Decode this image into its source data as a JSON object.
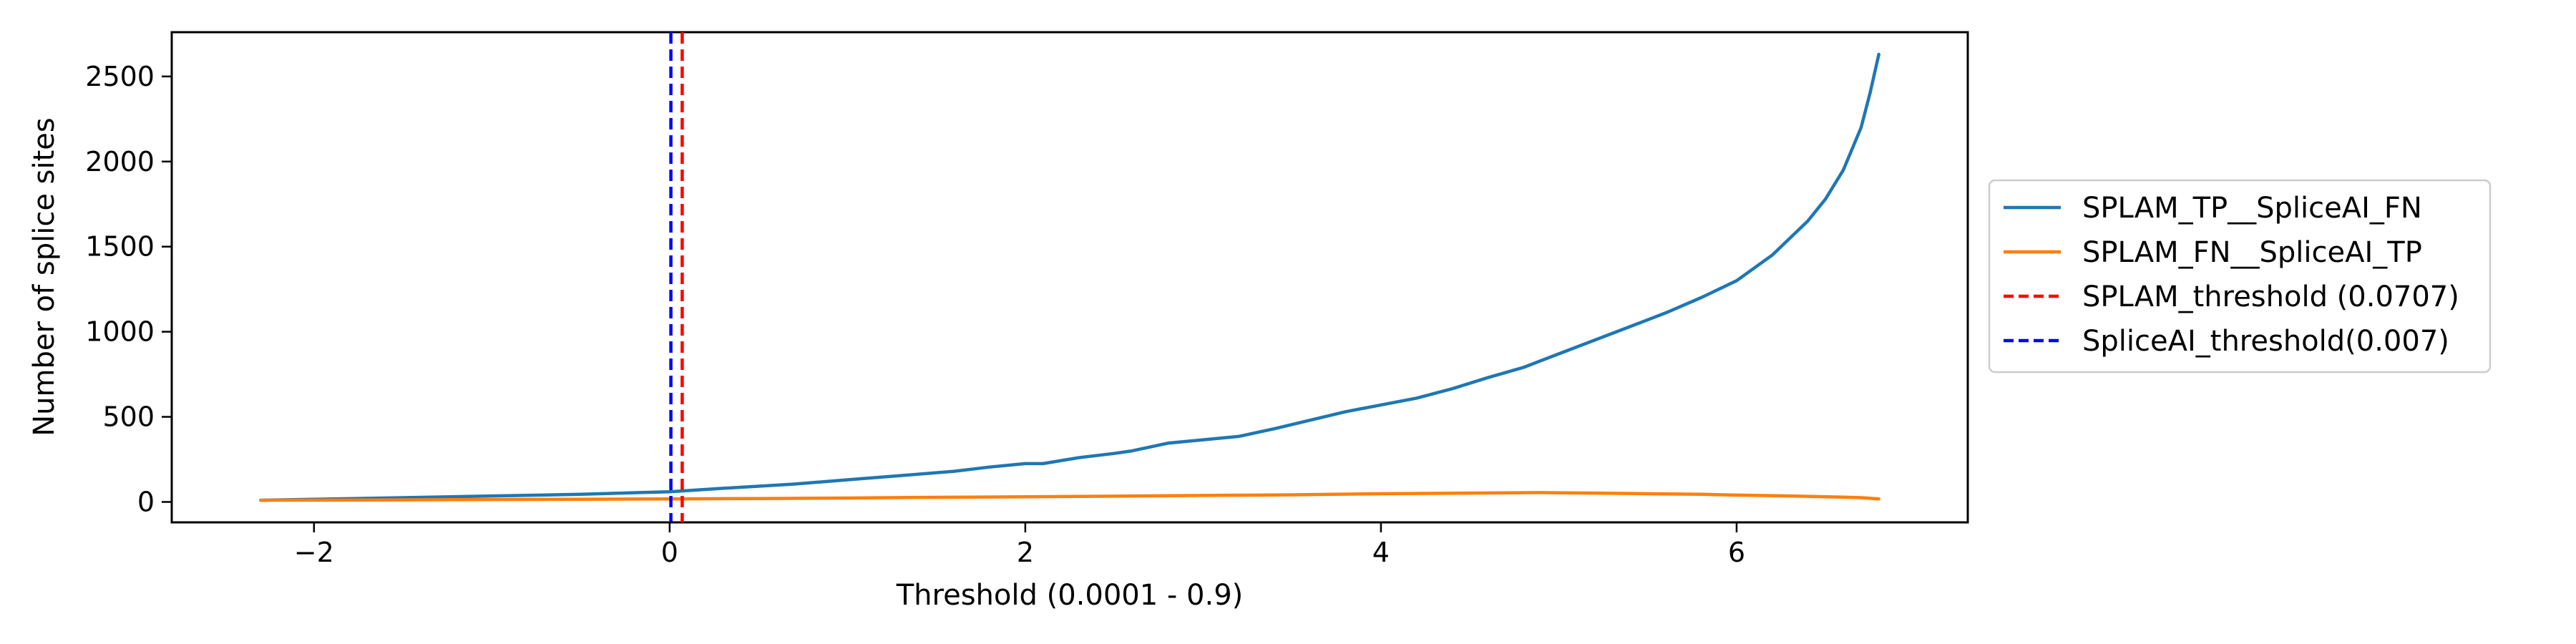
{
  "chart_data": {
    "type": "line",
    "title": "",
    "xlabel": "Threshold (0.0001 - 0.9)",
    "ylabel": "Number of splice sites",
    "xlim": [
      -2.8,
      7.3
    ],
    "ylim": [
      -120,
      2760
    ],
    "xticks": [
      -2,
      0,
      2,
      4,
      6
    ],
    "yticks": [
      0,
      500,
      1000,
      1500,
      2000,
      2500
    ],
    "grid": false,
    "legend_position": "outside-right",
    "series": [
      {
        "name": "SPLAM_TP__SpliceAI_FN",
        "color": "#1f77b4",
        "style": "solid",
        "x": [
          -2.3,
          -1.5,
          -1.0,
          -0.5,
          0.0,
          0.3,
          0.7,
          1.0,
          1.3,
          1.6,
          1.8,
          2.0,
          2.1,
          2.3,
          2.5,
          2.6,
          2.8,
          3.0,
          3.2,
          3.4,
          3.6,
          3.8,
          4.0,
          4.2,
          4.4,
          4.6,
          4.8,
          5.0,
          5.2,
          5.4,
          5.6,
          5.8,
          6.0,
          6.2,
          6.4,
          6.5,
          6.6,
          6.7,
          6.75,
          6.8
        ],
        "y": [
          10,
          25,
          35,
          45,
          60,
          80,
          105,
          130,
          155,
          180,
          205,
          225,
          225,
          260,
          285,
          300,
          345,
          365,
          385,
          430,
          480,
          530,
          570,
          610,
          665,
          730,
          790,
          870,
          950,
          1030,
          1110,
          1200,
          1300,
          1450,
          1650,
          1780,
          1950,
          2200,
          2400,
          2630
        ]
      },
      {
        "name": "SPLAM_FN__SpliceAI_TP",
        "color": "#ff7f0e",
        "style": "solid",
        "x": [
          -2.3,
          -1.5,
          -1.0,
          -0.5,
          0.0,
          0.5,
          1.0,
          1.5,
          2.0,
          2.5,
          3.0,
          3.5,
          4.0,
          4.5,
          4.9,
          5.2,
          5.5,
          5.8,
          6.0,
          6.3,
          6.6,
          6.7,
          6.8
        ],
        "y": [
          10,
          12,
          14,
          16,
          18,
          20,
          23,
          27,
          30,
          34,
          38,
          42,
          48,
          52,
          55,
          52,
          48,
          45,
          40,
          35,
          28,
          25,
          18
        ]
      }
    ],
    "vlines": [
      {
        "name": "SPLAM_threshold (0.0707)",
        "x": 0.0707,
        "color": "#ff0000",
        "style": "dashed"
      },
      {
        "name": "SpliceAI_threshold(0.007)",
        "x": 0.007,
        "color": "#0000ff",
        "style": "dashed"
      }
    ]
  }
}
